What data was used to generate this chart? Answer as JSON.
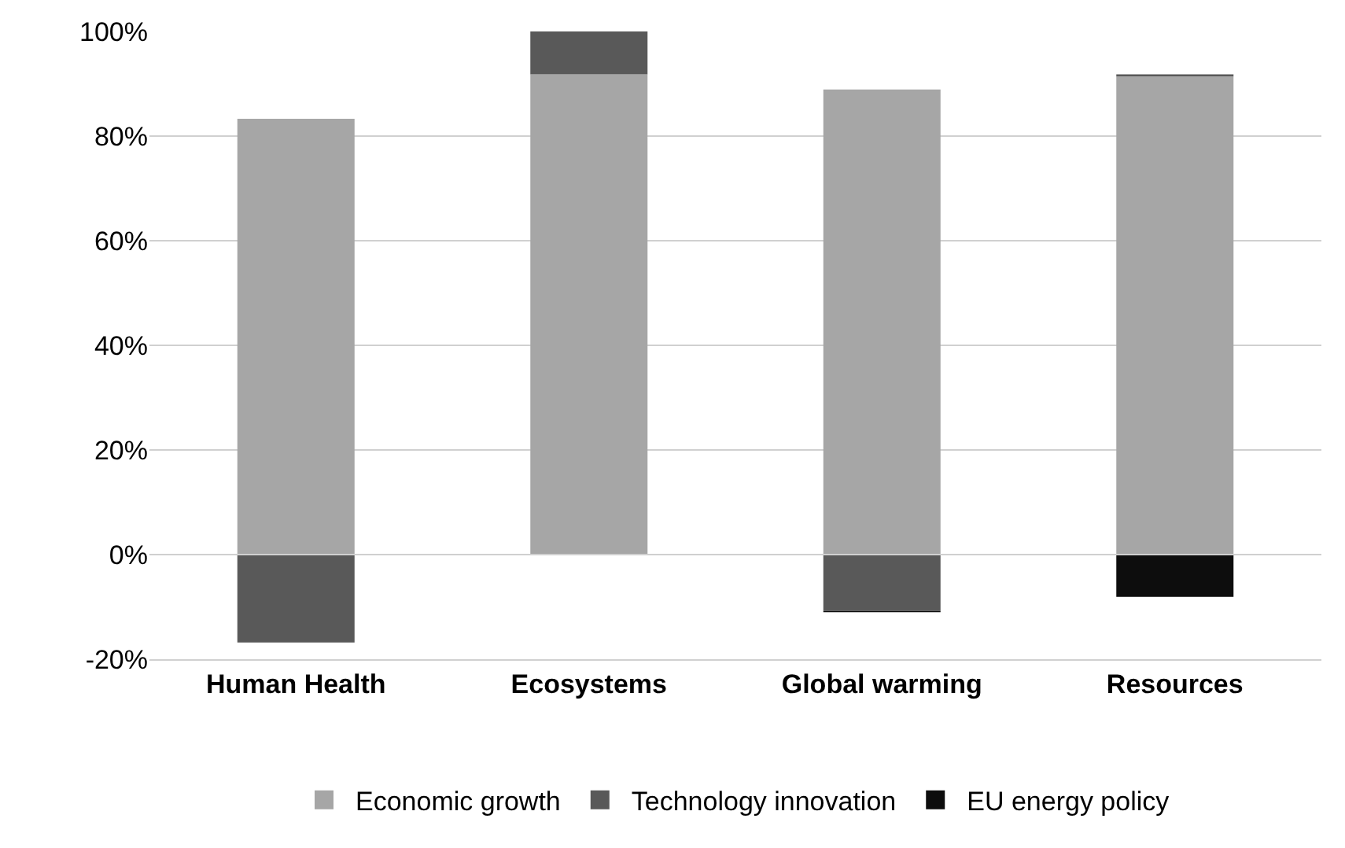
{
  "chart_data": {
    "type": "bar",
    "stacked": true,
    "categories": [
      "Human Health",
      "Ecosystems",
      "Global warming",
      "Resources"
    ],
    "series": [
      {
        "name": "Economic growth",
        "color": "#a6a6a6",
        "values": [
          83.3,
          91.8,
          88.9,
          91.4
        ]
      },
      {
        "name": "Technology innovation",
        "color": "#595959",
        "values": [
          -16.8,
          8.2,
          -10.8,
          0.4
        ]
      },
      {
        "name": "EU energy policy",
        "color": "#0d0d0d",
        "values": [
          0,
          0,
          -0.2,
          -8.1
        ]
      }
    ],
    "ylim": [
      -20,
      100
    ],
    "yticks": [
      {
        "value": -20,
        "label": "-20%"
      },
      {
        "value": 0,
        "label": "0%"
      },
      {
        "value": 20,
        "label": "20%"
      },
      {
        "value": 40,
        "label": "40%"
      },
      {
        "value": 60,
        "label": "60%"
      },
      {
        "value": 80,
        "label": "80%"
      },
      {
        "value": 100,
        "label": "100%"
      }
    ],
    "grid": "y",
    "legend": "bottom"
  }
}
